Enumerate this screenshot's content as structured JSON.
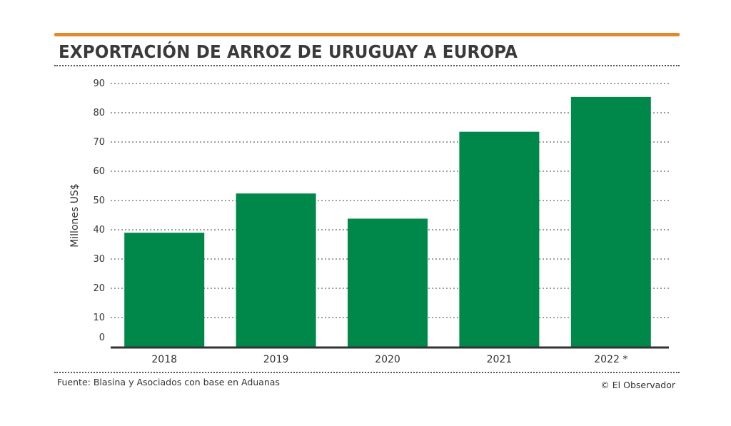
{
  "chart_data": {
    "type": "bar",
    "title": "EXPORTACIÓN DE ARROZ DE URUGUAY A EUROPA",
    "categories": [
      "2018",
      "2019",
      "2020",
      "2021",
      "2022 *"
    ],
    "values": [
      39,
      52.4,
      43.8,
      73.5,
      85.4
    ],
    "xlabel": "",
    "ylabel": "Millones US$",
    "ylim": [
      0,
      90
    ],
    "yticks": [
      0,
      10,
      20,
      30,
      40,
      50,
      60,
      70,
      80,
      90
    ],
    "grid": true,
    "bar_color": "#00884a",
    "accent_color": "#e08a2e"
  },
  "footer": {
    "source": "Fuente: Blasina y Asociados con base en Aduanas",
    "credit": "© El Observador"
  }
}
